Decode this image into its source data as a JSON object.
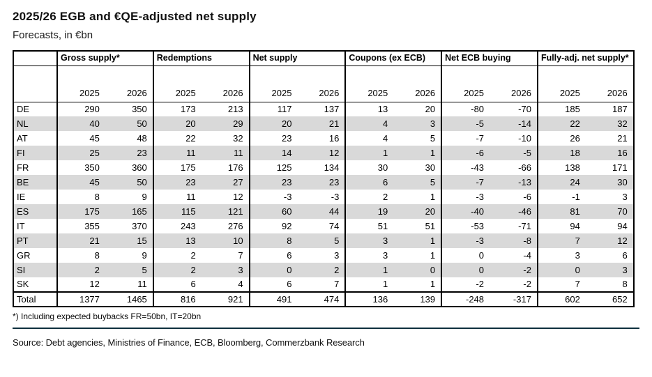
{
  "page": {
    "title": "2025/26 EGB and €QE-adjusted net supply",
    "subtitle": "Forecasts, in €bn",
    "footnote": "*) Including expected buybacks FR=50bn, IT=20bn",
    "source": "Source: Debt agencies, Ministries of Finance, ECB, Bloomberg, Commerzbank Research"
  },
  "colors": {
    "stripe": "#d9d9d9",
    "table_border": "#000000",
    "divider_rule": "#0e2f3e"
  },
  "chart_data": {
    "type": "table",
    "title": "2025/26 EGB and €QE-adjusted net supply",
    "subtitle": "Forecasts, in €bn",
    "column_groups": [
      "Gross supply*",
      "Redemptions",
      "Net supply",
      "Coupons (ex ECB)",
      "Net ECB buying",
      "Fully-adj. net supply*"
    ],
    "years": [
      "2025",
      "2026"
    ],
    "rows": [
      {
        "label": "DE",
        "values": [
          290,
          350,
          173,
          213,
          117,
          137,
          13,
          20,
          -80,
          -70,
          185,
          187
        ]
      },
      {
        "label": "NL",
        "values": [
          40,
          50,
          20,
          29,
          20,
          21,
          4,
          3,
          -5,
          -14,
          22,
          32
        ]
      },
      {
        "label": "AT",
        "values": [
          45,
          48,
          22,
          32,
          23,
          16,
          4,
          5,
          -7,
          -10,
          26,
          21
        ]
      },
      {
        "label": "FI",
        "values": [
          25,
          23,
          11,
          11,
          14,
          12,
          1,
          1,
          -6,
          -5,
          18,
          16
        ]
      },
      {
        "label": "FR",
        "values": [
          350,
          360,
          175,
          176,
          125,
          134,
          30,
          30,
          -43,
          -66,
          138,
          171
        ]
      },
      {
        "label": "BE",
        "values": [
          45,
          50,
          23,
          27,
          23,
          23,
          6,
          5,
          -7,
          -13,
          24,
          30
        ]
      },
      {
        "label": "IE",
        "values": [
          8,
          9,
          11,
          12,
          -3,
          -3,
          2,
          1,
          -3,
          -6,
          -1,
          3
        ]
      },
      {
        "label": "ES",
        "values": [
          175,
          165,
          115,
          121,
          60,
          44,
          19,
          20,
          -40,
          -46,
          81,
          70
        ]
      },
      {
        "label": "IT",
        "values": [
          355,
          370,
          243,
          276,
          92,
          74,
          51,
          51,
          -53,
          -71,
          94,
          94
        ]
      },
      {
        "label": "PT",
        "values": [
          21,
          15,
          13,
          10,
          8,
          5,
          3,
          1,
          -3,
          -8,
          7,
          12
        ]
      },
      {
        "label": "GR",
        "values": [
          8,
          9,
          2,
          7,
          6,
          3,
          3,
          1,
          0,
          -4,
          3,
          6
        ]
      },
      {
        "label": "SI",
        "values": [
          2,
          5,
          2,
          3,
          0,
          2,
          1,
          0,
          0,
          -2,
          0,
          3
        ]
      },
      {
        "label": "SK",
        "values": [
          12,
          11,
          6,
          4,
          6,
          7,
          1,
          1,
          -2,
          -2,
          7,
          8
        ]
      },
      {
        "label": "Total",
        "values": [
          1377,
          1465,
          816,
          921,
          491,
          474,
          136,
          139,
          -248,
          -317,
          602,
          652
        ],
        "is_total": true
      }
    ]
  }
}
